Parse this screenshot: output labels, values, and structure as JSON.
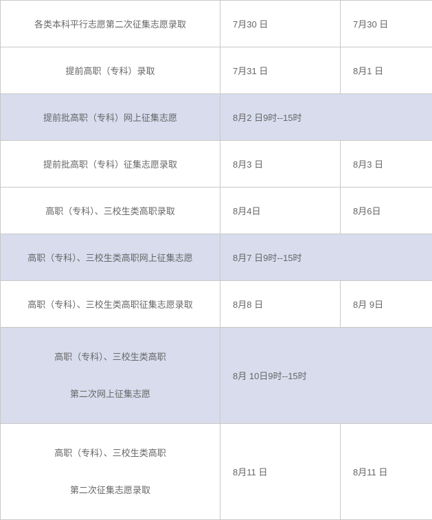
{
  "table": {
    "rows": [
      {
        "highlight": false,
        "twoLine": false,
        "label": "各类本科平行志愿第二次征集志愿录取",
        "start": "7月30 日",
        "end": "7月30 日",
        "merged": false
      },
      {
        "highlight": false,
        "twoLine": false,
        "label": "提前高职（专科）录取",
        "start": "7月31 日",
        "end": "8月1 日",
        "merged": false
      },
      {
        "highlight": true,
        "twoLine": false,
        "label": "提前批高职（专科）网上征集志愿",
        "start": "8月2 日9时--15时",
        "end": "",
        "merged": true
      },
      {
        "highlight": false,
        "twoLine": false,
        "label": "提前批高职（专科）征集志愿录取",
        "start": "8月3 日",
        "end": "8月3 日",
        "merged": false
      },
      {
        "highlight": false,
        "twoLine": false,
        "label": "高职（专科）、三校生类高职录取",
        "start": "8月4日",
        "end": "8月6日",
        "merged": false
      },
      {
        "highlight": true,
        "twoLine": false,
        "label": "高职（专科）、三校生类高职网上征集志愿",
        "start": "8月7 日9时--15时",
        "end": "",
        "merged": true
      },
      {
        "highlight": false,
        "twoLine": false,
        "label": "高职（专科）、三校生类高职征集志愿录取",
        "start": "8月8 日",
        "end": "8月 9日",
        "merged": false
      },
      {
        "highlight": true,
        "twoLine": true,
        "label1": "高职（专科）、三校生类高职",
        "label2": "第二次网上征集志愿",
        "start": "8月 10日9时--15时",
        "end": "",
        "merged": true
      },
      {
        "highlight": false,
        "twoLine": true,
        "label1": "高职（专科）、三校生类高职",
        "label2": "第二次征集志愿录取",
        "start": "8月11 日",
        "end": "8月11 日",
        "merged": false
      }
    ],
    "colors": {
      "border": "#c8c8c8",
      "highlight_bg": "#d8dced",
      "text": "#666666",
      "background": "#ffffff"
    },
    "font_size_pt": 10
  }
}
